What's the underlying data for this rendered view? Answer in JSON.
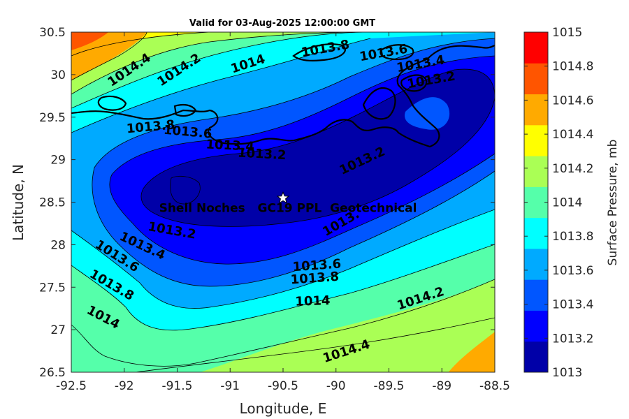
{
  "title": "Valid for 03-Aug-2025 12:00:00 GMT",
  "x_axis": {
    "label": "Longitude, E",
    "ticks": [
      "-92.5",
      "-92",
      "-91.5",
      "-91",
      "-90.5",
      "-90",
      "-89.5",
      "-89",
      "-88.5"
    ]
  },
  "y_axis": {
    "label": "Latitude, N",
    "ticks": [
      "30.5",
      "30",
      "29.5",
      "29",
      "28.5",
      "28",
      "27.5",
      "27",
      "26.5"
    ]
  },
  "colorbar": {
    "label": "Surface Pressure, mb",
    "ticks": [
      "1015",
      "1014.8",
      "1014.6",
      "1014.4",
      "1014.2",
      "1014",
      "1013.8",
      "1013.6",
      "1013.4",
      "1013.2",
      "1013"
    ],
    "colors": [
      "#0000a8",
      "#0000ff",
      "#0056ff",
      "#00aaff",
      "#00ffff",
      "#55ffaa",
      "#aaff55",
      "#ffff00",
      "#ffaa00",
      "#ff5500",
      "#ff0000"
    ]
  },
  "site": {
    "name": "Shell Noches   GC19 PPL  Geotechnical",
    "lon": -90.5,
    "lat": 28.55
  },
  "contour_labels": [
    {
      "text": "1014.4",
      "lon": -91.95,
      "lat": 30.05,
      "angle": -34
    },
    {
      "text": "1014.2",
      "lon": -91.48,
      "lat": 30.05,
      "angle": -33
    },
    {
      "text": "1014",
      "lon": -90.83,
      "lat": 30.12,
      "angle": -18
    },
    {
      "text": "1013.8",
      "lon": -90.1,
      "lat": 30.3,
      "angle": -10
    },
    {
      "text": "1013.6",
      "lon": -89.55,
      "lat": 30.25,
      "angle": -10
    },
    {
      "text": "1013.4",
      "lon": -89.2,
      "lat": 30.12,
      "angle": -10
    },
    {
      "text": "1013.2",
      "lon": -89.1,
      "lat": 29.93,
      "angle": -10
    },
    {
      "text": "1013.8",
      "lon": -91.75,
      "lat": 29.38,
      "angle": -5
    },
    {
      "text": "1013.6",
      "lon": -91.4,
      "lat": 29.32,
      "angle": 5
    },
    {
      "text": "1013.4",
      "lon": -91.0,
      "lat": 29.16,
      "angle": 3
    },
    {
      "text": "1013.2",
      "lon": -90.7,
      "lat": 29.06,
      "angle": 3
    },
    {
      "text": "1013.2",
      "lon": -89.75,
      "lat": 28.98,
      "angle": -25
    },
    {
      "text": "1013.2",
      "lon": -91.55,
      "lat": 28.16,
      "angle": 10
    },
    {
      "text": "1013.4",
      "lon": -91.83,
      "lat": 27.98,
      "angle": 25
    },
    {
      "text": "1013.6",
      "lon": -92.07,
      "lat": 27.86,
      "angle": 32
    },
    {
      "text": "1013.8",
      "lon": -92.12,
      "lat": 27.52,
      "angle": 30
    },
    {
      "text": "1014",
      "lon": -92.2,
      "lat": 27.14,
      "angle": 28
    },
    {
      "text": "1013.6",
      "lon": -90.18,
      "lat": 27.75,
      "angle": -4
    },
    {
      "text": "1013.8",
      "lon": -90.2,
      "lat": 27.6,
      "angle": -4
    },
    {
      "text": "1014",
      "lon": -90.22,
      "lat": 27.33,
      "angle": -2
    },
    {
      "text": "1014.2",
      "lon": -89.2,
      "lat": 27.36,
      "angle": -18
    },
    {
      "text": "1014.4",
      "lon": -89.9,
      "lat": 26.74,
      "angle": -18
    },
    {
      "text": "1013.",
      "lon": -89.95,
      "lat": 28.25,
      "angle": -30
    }
  ],
  "colors": {
    "coastline": "#000000",
    "contour_line": "#000000"
  }
}
